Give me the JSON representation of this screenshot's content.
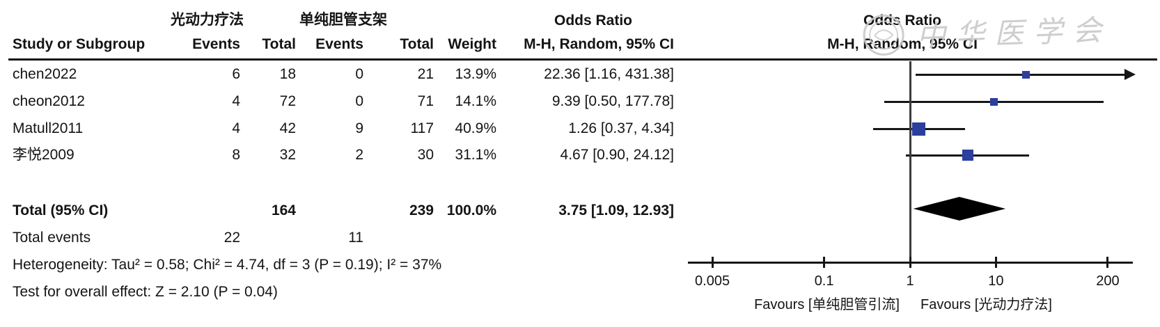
{
  "watermark": {
    "text": "中华医学会"
  },
  "header": {
    "study_col": "Study or Subgroup",
    "events_col": "Events",
    "total_col": "Total",
    "weight_col": "Weight",
    "group1": "光动力疗法",
    "group2": "单纯胆管支架",
    "or_title": "Odds Ratio",
    "or_subtitle": "M-H, Random, 95% CI"
  },
  "summary": {
    "total_label": "Total (95% CI)",
    "total_events_label": "Total events",
    "heterogeneity": "Heterogeneity: Tau² = 0.58; Chi² = 4.74, df = 3 (P = 0.19); I² = 37%",
    "overall_effect": "Test for overall effect: Z = 2.10 (P = 0.04)"
  },
  "chart_data": {
    "type": "scatter",
    "subtype": "forest-plot",
    "title": "Odds Ratio",
    "effect_measure": "M-H, Random, 95% CI",
    "x_scale": "log",
    "x_ticks": [
      0.005,
      0.1,
      1,
      10,
      200
    ],
    "x_range": [
      0.002,
      400
    ],
    "favours_left": "Favours [单纯胆管引流]",
    "favours_right": "Favours [光动力疗法]",
    "square_color": "#2c3e9e",
    "diamond_color": "#000000",
    "studies": [
      {
        "name": "chen2022",
        "events1": 6,
        "total1": 18,
        "events2": 0,
        "total2": 21,
        "weight_pct": 13.9,
        "or": 22.36,
        "ci_low": 1.16,
        "ci_high": 431.38
      },
      {
        "name": "cheon2012",
        "events1": 4,
        "total1": 72,
        "events2": 0,
        "total2": 71,
        "weight_pct": 14.1,
        "or": 9.39,
        "ci_low": 0.5,
        "ci_high": 177.78
      },
      {
        "name": "Matull2011",
        "events1": 4,
        "total1": 42,
        "events2": 9,
        "total2": 117,
        "weight_pct": 40.9,
        "or": 1.26,
        "ci_low": 0.37,
        "ci_high": 4.34
      },
      {
        "name": "李悦2009",
        "events1": 8,
        "total1": 32,
        "events2": 2,
        "total2": 30,
        "weight_pct": 31.1,
        "or": 4.67,
        "ci_low": 0.9,
        "ci_high": 24.12
      }
    ],
    "overall": {
      "total1": 164,
      "total2": 239,
      "weight_pct": 100.0,
      "or": 3.75,
      "ci_low": 1.09,
      "ci_high": 12.93,
      "total_events1": 22,
      "total_events2": 11
    },
    "heterogeneity": {
      "tau2": 0.58,
      "chi2": 4.74,
      "df": 3,
      "p": 0.19,
      "i2_pct": 37
    },
    "overall_effect_test": {
      "z": 2.1,
      "p": 0.04
    }
  }
}
